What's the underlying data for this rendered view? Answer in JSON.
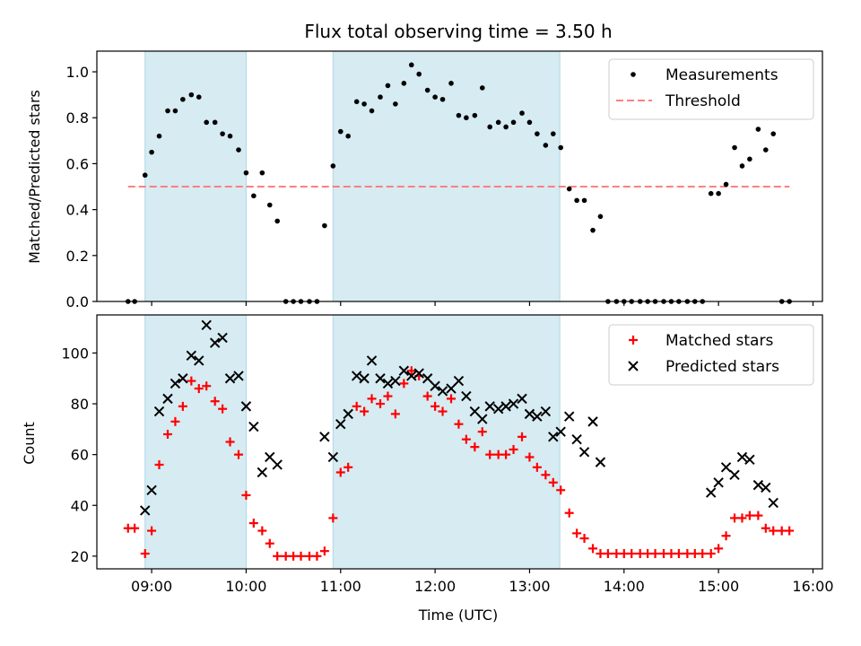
{
  "chart_data": [
    {
      "type": "scatter",
      "title": "Flux total observing time = 3.50 h",
      "xlabel": "",
      "ylabel": "Matched/Predicted stars",
      "xlim": [
        8.42,
        16.1
      ],
      "ylim": [
        0,
        1.09
      ],
      "yticks": [
        0.0,
        0.2,
        0.4,
        0.6,
        0.8,
        1.0
      ],
      "ytick_labels": [
        "0.0",
        "0.2",
        "0.4",
        "0.6",
        "0.8",
        "1.0"
      ],
      "shaded_intervals": [
        [
          8.93,
          10.0
        ],
        [
          10.92,
          13.32
        ]
      ],
      "legend_position": "top-right",
      "series": [
        {
          "name": "Measurements",
          "marker": "dot",
          "color": "#000000",
          "points": [
            [
              8.75,
              0.0
            ],
            [
              8.82,
              0.0
            ],
            [
              8.93,
              0.55
            ],
            [
              9.0,
              0.65
            ],
            [
              9.08,
              0.72
            ],
            [
              9.17,
              0.83
            ],
            [
              9.25,
              0.83
            ],
            [
              9.33,
              0.88
            ],
            [
              9.42,
              0.9
            ],
            [
              9.5,
              0.89
            ],
            [
              9.58,
              0.78
            ],
            [
              9.67,
              0.78
            ],
            [
              9.75,
              0.73
            ],
            [
              9.83,
              0.72
            ],
            [
              9.92,
              0.66
            ],
            [
              10.0,
              0.56
            ],
            [
              10.08,
              0.46
            ],
            [
              10.17,
              0.56
            ],
            [
              10.25,
              0.42
            ],
            [
              10.33,
              0.35
            ],
            [
              10.42,
              0.0
            ],
            [
              10.5,
              0.0
            ],
            [
              10.58,
              0.0
            ],
            [
              10.67,
              0.0
            ],
            [
              10.75,
              0.0
            ],
            [
              10.83,
              0.33
            ],
            [
              10.92,
              0.59
            ],
            [
              11.0,
              0.74
            ],
            [
              11.08,
              0.72
            ],
            [
              11.17,
              0.87
            ],
            [
              11.25,
              0.86
            ],
            [
              11.33,
              0.83
            ],
            [
              11.42,
              0.89
            ],
            [
              11.5,
              0.94
            ],
            [
              11.58,
              0.86
            ],
            [
              11.67,
              0.95
            ],
            [
              11.75,
              1.03
            ],
            [
              11.83,
              0.99
            ],
            [
              11.92,
              0.92
            ],
            [
              12.0,
              0.89
            ],
            [
              12.08,
              0.88
            ],
            [
              12.17,
              0.95
            ],
            [
              12.25,
              0.81
            ],
            [
              12.33,
              0.8
            ],
            [
              12.42,
              0.81
            ],
            [
              12.5,
              0.93
            ],
            [
              12.58,
              0.76
            ],
            [
              12.67,
              0.78
            ],
            [
              12.75,
              0.76
            ],
            [
              12.83,
              0.78
            ],
            [
              12.92,
              0.82
            ],
            [
              13.0,
              0.78
            ],
            [
              13.08,
              0.73
            ],
            [
              13.17,
              0.68
            ],
            [
              13.25,
              0.73
            ],
            [
              13.33,
              0.67
            ],
            [
              13.42,
              0.49
            ],
            [
              13.5,
              0.44
            ],
            [
              13.58,
              0.44
            ],
            [
              13.67,
              0.31
            ],
            [
              13.75,
              0.37
            ],
            [
              13.83,
              0.0
            ],
            [
              13.92,
              0.0
            ],
            [
              14.0,
              0.0
            ],
            [
              14.08,
              0.0
            ],
            [
              14.17,
              0.0
            ],
            [
              14.25,
              0.0
            ],
            [
              14.33,
              0.0
            ],
            [
              14.42,
              0.0
            ],
            [
              14.5,
              0.0
            ],
            [
              14.58,
              0.0
            ],
            [
              14.67,
              0.0
            ],
            [
              14.75,
              0.0
            ],
            [
              14.83,
              0.0
            ],
            [
              14.92,
              0.47
            ],
            [
              15.0,
              0.47
            ],
            [
              15.08,
              0.51
            ],
            [
              15.17,
              0.67
            ],
            [
              15.25,
              0.59
            ],
            [
              15.33,
              0.62
            ],
            [
              15.42,
              0.75
            ],
            [
              15.5,
              0.66
            ],
            [
              15.58,
              0.73
            ],
            [
              15.67,
              0.0
            ],
            [
              15.75,
              0.0
            ]
          ]
        },
        {
          "name": "Threshold",
          "marker": "dashed-line",
          "color": "#ff7f7f",
          "points": [
            [
              8.75,
              0.5
            ],
            [
              15.75,
              0.5
            ]
          ]
        }
      ]
    },
    {
      "type": "scatter",
      "title": "",
      "xlabel": "Time (UTC)",
      "ylabel": "Count",
      "xlim": [
        8.42,
        16.1
      ],
      "ylim": [
        15,
        115
      ],
      "yticks": [
        20,
        40,
        60,
        80,
        100
      ],
      "ytick_labels": [
        "20",
        "40",
        "60",
        "80",
        "100"
      ],
      "xticks": [
        9,
        10,
        11,
        12,
        13,
        14,
        15,
        16
      ],
      "xtick_labels": [
        "09:00",
        "10:00",
        "11:00",
        "12:00",
        "13:00",
        "14:00",
        "15:00",
        "16:00"
      ],
      "shaded_intervals": [
        [
          8.93,
          10.0
        ],
        [
          10.92,
          13.32
        ]
      ],
      "legend_position": "top-right",
      "series": [
        {
          "name": "Matched stars",
          "marker": "plus",
          "color": "#ff0000",
          "points": [
            [
              8.75,
              31
            ],
            [
              8.82,
              31
            ],
            [
              8.93,
              21
            ],
            [
              9.0,
              30
            ],
            [
              9.08,
              56
            ],
            [
              9.17,
              68
            ],
            [
              9.25,
              73
            ],
            [
              9.33,
              79
            ],
            [
              9.42,
              89
            ],
            [
              9.5,
              86
            ],
            [
              9.58,
              87
            ],
            [
              9.67,
              81
            ],
            [
              9.75,
              78
            ],
            [
              9.83,
              65
            ],
            [
              9.92,
              60
            ],
            [
              10.0,
              44
            ],
            [
              10.08,
              33
            ],
            [
              10.17,
              30
            ],
            [
              10.25,
              25
            ],
            [
              10.33,
              20
            ],
            [
              10.42,
              20
            ],
            [
              10.5,
              20
            ],
            [
              10.58,
              20
            ],
            [
              10.67,
              20
            ],
            [
              10.75,
              20
            ],
            [
              10.83,
              22
            ],
            [
              10.92,
              35
            ],
            [
              11.0,
              53
            ],
            [
              11.08,
              55
            ],
            [
              11.17,
              79
            ],
            [
              11.25,
              77
            ],
            [
              11.33,
              82
            ],
            [
              11.42,
              80
            ],
            [
              11.5,
              83
            ],
            [
              11.58,
              76
            ],
            [
              11.67,
              88
            ],
            [
              11.75,
              93
            ],
            [
              11.83,
              91
            ],
            [
              11.92,
              83
            ],
            [
              12.0,
              79
            ],
            [
              12.08,
              77
            ],
            [
              12.17,
              82
            ],
            [
              12.25,
              72
            ],
            [
              12.33,
              66
            ],
            [
              12.42,
              63
            ],
            [
              12.5,
              69
            ],
            [
              12.58,
              60
            ],
            [
              12.67,
              60
            ],
            [
              12.75,
              60
            ],
            [
              12.83,
              62
            ],
            [
              12.92,
              67
            ],
            [
              13.0,
              59
            ],
            [
              13.08,
              55
            ],
            [
              13.17,
              52
            ],
            [
              13.25,
              49
            ],
            [
              13.33,
              46
            ],
            [
              13.42,
              37
            ],
            [
              13.5,
              29
            ],
            [
              13.58,
              27
            ],
            [
              13.67,
              23
            ],
            [
              13.75,
              21
            ],
            [
              13.83,
              21
            ],
            [
              13.92,
              21
            ],
            [
              14.0,
              21
            ],
            [
              14.08,
              21
            ],
            [
              14.17,
              21
            ],
            [
              14.25,
              21
            ],
            [
              14.33,
              21
            ],
            [
              14.42,
              21
            ],
            [
              14.5,
              21
            ],
            [
              14.58,
              21
            ],
            [
              14.67,
              21
            ],
            [
              14.75,
              21
            ],
            [
              14.83,
              21
            ],
            [
              14.92,
              21
            ],
            [
              15.0,
              23
            ],
            [
              15.08,
              28
            ],
            [
              15.17,
              35
            ],
            [
              15.25,
              35
            ],
            [
              15.33,
              36
            ],
            [
              15.42,
              36
            ],
            [
              15.5,
              31
            ],
            [
              15.58,
              30
            ],
            [
              15.67,
              30
            ],
            [
              15.75,
              30
            ]
          ]
        },
        {
          "name": "Predicted stars",
          "marker": "x",
          "color": "#000000",
          "points": [
            [
              8.93,
              38
            ],
            [
              9.0,
              46
            ],
            [
              9.08,
              77
            ],
            [
              9.17,
              82
            ],
            [
              9.25,
              88
            ],
            [
              9.33,
              90
            ],
            [
              9.42,
              99
            ],
            [
              9.5,
              97
            ],
            [
              9.58,
              111
            ],
            [
              9.67,
              104
            ],
            [
              9.75,
              106
            ],
            [
              9.83,
              90
            ],
            [
              9.92,
              91
            ],
            [
              10.0,
              79
            ],
            [
              10.08,
              71
            ],
            [
              10.17,
              53
            ],
            [
              10.25,
              59
            ],
            [
              10.33,
              56
            ],
            [
              10.83,
              67
            ],
            [
              10.92,
              59
            ],
            [
              11.0,
              72
            ],
            [
              11.08,
              76
            ],
            [
              11.17,
              91
            ],
            [
              11.25,
              90
            ],
            [
              11.33,
              97
            ],
            [
              11.42,
              90
            ],
            [
              11.5,
              88
            ],
            [
              11.58,
              89
            ],
            [
              11.67,
              93
            ],
            [
              11.75,
              91
            ],
            [
              11.83,
              92
            ],
            [
              11.92,
              90
            ],
            [
              12.0,
              87
            ],
            [
              12.08,
              85
            ],
            [
              12.17,
              86
            ],
            [
              12.25,
              89
            ],
            [
              12.33,
              83
            ],
            [
              12.42,
              77
            ],
            [
              12.5,
              74
            ],
            [
              12.58,
              79
            ],
            [
              12.67,
              78
            ],
            [
              12.75,
              79
            ],
            [
              12.83,
              80
            ],
            [
              12.92,
              82
            ],
            [
              13.0,
              76
            ],
            [
              13.08,
              75
            ],
            [
              13.17,
              77
            ],
            [
              13.25,
              67
            ],
            [
              13.33,
              69
            ],
            [
              13.42,
              75
            ],
            [
              13.5,
              66
            ],
            [
              13.58,
              61
            ],
            [
              13.67,
              73
            ],
            [
              13.75,
              57
            ],
            [
              14.92,
              45
            ],
            [
              15.0,
              49
            ],
            [
              15.08,
              55
            ],
            [
              15.17,
              52
            ],
            [
              15.25,
              59
            ],
            [
              15.33,
              58
            ],
            [
              15.42,
              48
            ],
            [
              15.5,
              47
            ],
            [
              15.58,
              41
            ]
          ]
        }
      ]
    }
  ]
}
